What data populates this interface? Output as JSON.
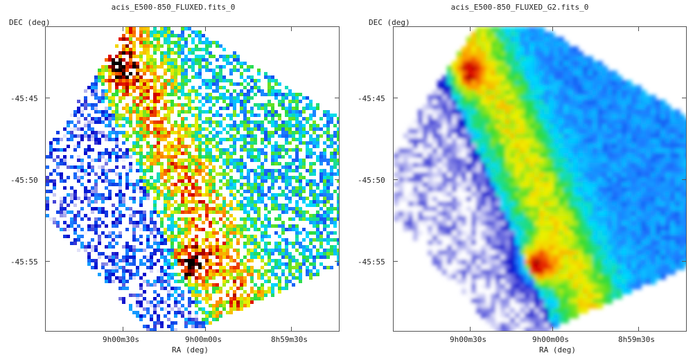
{
  "chart_data": [
    {
      "type": "heatmap",
      "title": "acis_E500-850_FLUXED.fits_0",
      "xlabel": "RA (deg)",
      "ylabel": "DEC (deg)",
      "x_ticks": [
        "9h00m30s",
        "9h00m00s",
        "8h59m30s"
      ],
      "y_ticks": [
        "-45:45",
        "-45:50",
        "-45:55"
      ],
      "style": "pixelated",
      "colormap": [
        "#ffffff",
        "#0000c8",
        "#1e78ff",
        "#00dcff",
        "#32dc32",
        "#f0f000",
        "#ff8c00",
        "#dc0000",
        "#000000"
      ],
      "background": "#ffffff"
    },
    {
      "type": "heatmap",
      "title": "acis_E500-850_FLUXED_G2.fits_0",
      "xlabel": "RA (deg)",
      "ylabel": "DEC (deg)",
      "x_ticks": [
        "9h00m30s",
        "9h00m00s",
        "8h59m30s"
      ],
      "y_ticks": [
        "-45:45",
        "-45:50",
        "-45:55"
      ],
      "style": "smoothed",
      "colormap": [
        "#ffffff",
        "#0000c8",
        "#1e78ff",
        "#00dcff",
        "#32dc32",
        "#f0f000",
        "#ff8c00",
        "#dc0000",
        "#000000"
      ],
      "background": "#ffffff"
    }
  ]
}
